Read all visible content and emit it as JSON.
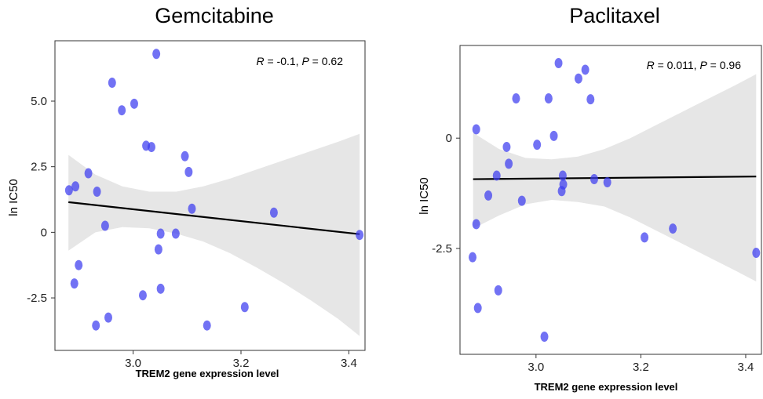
{
  "chart_data": [
    {
      "type": "scatter",
      "title": "Gemcitabine",
      "xlabel": "TREM2 gene expression level",
      "ylabel": "ln IC50",
      "xlim": [
        2.855,
        3.43
      ],
      "ylim": [
        -4.5,
        7.3
      ],
      "x_ticks": [
        "3.0",
        "3.2",
        "3.4"
      ],
      "x_tick_values": [
        3.0,
        3.2,
        3.4
      ],
      "y_ticks": [
        "-2.5",
        "0",
        "2.5",
        "5.0"
      ],
      "y_tick_values": [
        -2.5,
        0,
        2.5,
        5.0
      ],
      "annotation": {
        "r_label": "R",
        "r_value": " = -0.1, ",
        "p_label": "P",
        "p_value": " = 0.62"
      },
      "regression": {
        "x": [
          2.88,
          3.42
        ],
        "y": [
          1.15,
          -0.07
        ]
      },
      "confidence_band": {
        "x": [
          2.88,
          2.93,
          2.98,
          3.03,
          3.08,
          3.13,
          3.18,
          3.23,
          3.28,
          3.33,
          3.38,
          3.42
        ],
        "upper": [
          2.95,
          2.2,
          1.75,
          1.55,
          1.55,
          1.75,
          2.05,
          2.4,
          2.75,
          3.1,
          3.45,
          3.75
        ],
        "lower": [
          -0.7,
          0.0,
          0.2,
          0.15,
          -0.05,
          -0.35,
          -0.8,
          -1.35,
          -1.95,
          -2.6,
          -3.3,
          -3.95
        ]
      },
      "points": [
        {
          "x": 3.043,
          "y": 6.8
        },
        {
          "x": 2.961,
          "y": 5.7
        },
        {
          "x": 3.002,
          "y": 4.9
        },
        {
          "x": 2.979,
          "y": 4.65
        },
        {
          "x": 3.024,
          "y": 3.3
        },
        {
          "x": 3.034,
          "y": 3.25
        },
        {
          "x": 3.096,
          "y": 2.9
        },
        {
          "x": 3.103,
          "y": 2.3
        },
        {
          "x": 2.917,
          "y": 2.25
        },
        {
          "x": 2.893,
          "y": 1.75
        },
        {
          "x": 2.881,
          "y": 1.6
        },
        {
          "x": 2.933,
          "y": 1.55
        },
        {
          "x": 3.109,
          "y": 0.9
        },
        {
          "x": 3.261,
          "y": 0.75
        },
        {
          "x": 2.948,
          "y": 0.25
        },
        {
          "x": 3.051,
          "y": -0.05
        },
        {
          "x": 3.079,
          "y": -0.05
        },
        {
          "x": 3.42,
          "y": -0.1
        },
        {
          "x": 3.047,
          "y": -0.65
        },
        {
          "x": 2.899,
          "y": -1.25
        },
        {
          "x": 2.891,
          "y": -1.95
        },
        {
          "x": 3.051,
          "y": -2.15
        },
        {
          "x": 3.018,
          "y": -2.4
        },
        {
          "x": 3.207,
          "y": -2.85
        },
        {
          "x": 2.954,
          "y": -3.25
        },
        {
          "x": 2.931,
          "y": -3.55
        },
        {
          "x": 3.137,
          "y": -3.55
        }
      ],
      "point_color": "#3b3bf0"
    },
    {
      "type": "scatter",
      "title": "Paclitaxel",
      "xlabel": "TREM2 gene expression level",
      "ylabel": "ln IC50",
      "xlim": [
        2.855,
        3.43
      ],
      "ylim": [
        -4.9,
        2.1
      ],
      "x_ticks": [
        "3.0",
        "3.2",
        "3.4"
      ],
      "x_tick_values": [
        3.0,
        3.2,
        3.4
      ],
      "y_ticks": [
        "-2.5",
        "0"
      ],
      "y_tick_values": [
        -2.5,
        0
      ],
      "annotation": {
        "r_label": "R",
        "r_value": " = 0.011, ",
        "p_label": "P",
        "p_value": " = 0.96"
      },
      "regression": {
        "x": [
          2.88,
          3.42
        ],
        "y": [
          -0.93,
          -0.87
        ]
      },
      "confidence_band": {
        "x": [
          2.88,
          2.93,
          2.98,
          3.03,
          3.08,
          3.13,
          3.18,
          3.23,
          3.28,
          3.33,
          3.38,
          3.42
        ],
        "upper": [
          0.12,
          -0.25,
          -0.45,
          -0.48,
          -0.42,
          -0.25,
          0.0,
          0.3,
          0.6,
          0.9,
          1.2,
          1.45
        ],
        "lower": [
          -2.05,
          -1.75,
          -1.5,
          -1.4,
          -1.45,
          -1.55,
          -1.8,
          -2.1,
          -2.4,
          -2.7,
          -3.0,
          -3.25
        ]
      },
      "points": [
        {
          "x": 3.043,
          "y": 1.7
        },
        {
          "x": 3.094,
          "y": 1.55
        },
        {
          "x": 3.081,
          "y": 1.35
        },
        {
          "x": 2.962,
          "y": 0.9
        },
        {
          "x": 3.024,
          "y": 0.9
        },
        {
          "x": 3.104,
          "y": 0.88
        },
        {
          "x": 2.886,
          "y": 0.2
        },
        {
          "x": 3.034,
          "y": 0.05
        },
        {
          "x": 3.002,
          "y": -0.15
        },
        {
          "x": 2.944,
          "y": -0.2
        },
        {
          "x": 2.948,
          "y": -0.58
        },
        {
          "x": 2.925,
          "y": -0.85
        },
        {
          "x": 3.051,
          "y": -0.85
        },
        {
          "x": 3.111,
          "y": -0.93
        },
        {
          "x": 3.136,
          "y": -1.0
        },
        {
          "x": 3.052,
          "y": -1.05
        },
        {
          "x": 3.049,
          "y": -1.2
        },
        {
          "x": 2.909,
          "y": -1.3
        },
        {
          "x": 2.973,
          "y": -1.42
        },
        {
          "x": 2.886,
          "y": -1.95
        },
        {
          "x": 3.261,
          "y": -2.05
        },
        {
          "x": 3.207,
          "y": -2.25
        },
        {
          "x": 3.42,
          "y": -2.6
        },
        {
          "x": 2.879,
          "y": -2.7
        },
        {
          "x": 2.928,
          "y": -3.45
        },
        {
          "x": 2.889,
          "y": -3.85
        },
        {
          "x": 3.016,
          "y": -4.5
        }
      ],
      "point_color": "#3b3bf0"
    }
  ]
}
